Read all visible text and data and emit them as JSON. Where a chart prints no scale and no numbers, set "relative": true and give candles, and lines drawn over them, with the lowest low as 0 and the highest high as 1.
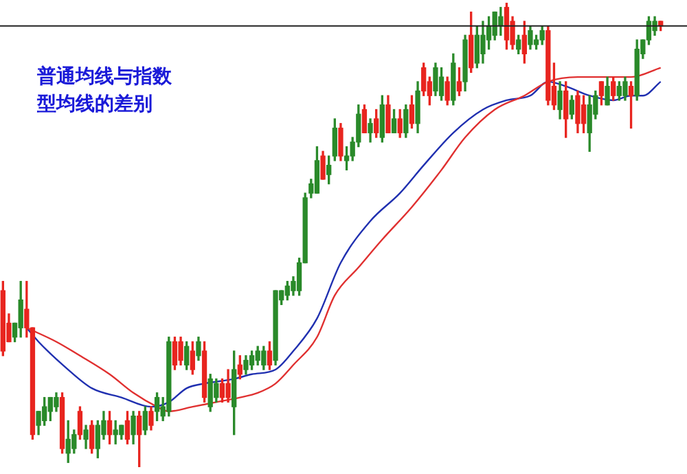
{
  "chart_data": {
    "type": "candlestick",
    "relative": true,
    "title": "普通均线与指数型均线的差别",
    "categories": [
      null,
      null,
      null,
      null,
      null,
      null,
      null,
      null,
      null,
      null,
      null,
      null,
      null,
      null,
      null,
      null,
      null,
      null,
      null,
      null,
      null,
      null,
      null,
      null,
      null,
      null,
      null,
      null,
      null,
      null,
      null,
      null,
      null,
      null,
      null,
      null,
      null,
      null,
      null,
      null,
      null,
      null,
      null,
      null,
      null,
      null,
      null,
      null,
      null,
      null,
      null,
      null,
      null,
      null,
      null,
      null,
      null,
      null,
      null,
      null,
      null,
      null,
      null,
      null,
      null,
      null,
      null,
      null,
      null,
      null,
      null,
      null,
      null,
      null,
      null,
      null,
      null,
      null,
      null,
      null,
      null,
      null,
      null,
      null,
      null,
      null,
      null,
      null,
      null,
      null,
      null,
      null,
      null,
      null,
      null,
      null,
      null,
      null,
      null,
      null,
      null,
      null,
      null,
      null,
      null,
      null,
      null,
      null,
      null,
      null,
      null,
      null
    ],
    "ohlc": [
      [
        0.38,
        0.4,
        0.24,
        0.25
      ],
      [
        0.31,
        0.33,
        0.27,
        0.27
      ],
      [
        0.28,
        0.31,
        0.27,
        0.31
      ],
      [
        0.3,
        0.4,
        0.28,
        0.36
      ],
      [
        0.34,
        0.4,
        0.28,
        0.3
      ],
      [
        0.3,
        0.3,
        0.06,
        0.07
      ],
      [
        0.09,
        0.12,
        0.07,
        0.12
      ],
      [
        0.1,
        0.15,
        0.09,
        0.13
      ],
      [
        0.12,
        0.15,
        0.1,
        0.15
      ],
      [
        0.13,
        0.16,
        0.12,
        0.15
      ],
      [
        0.15,
        0.16,
        0.03,
        0.04
      ],
      [
        0.03,
        0.1,
        0.01,
        0.06
      ],
      [
        0.04,
        0.08,
        0.03,
        0.07
      ],
      [
        0.12,
        0.13,
        0.06,
        0.07
      ],
      [
        0.06,
        0.09,
        0.04,
        0.08
      ],
      [
        0.09,
        0.1,
        0.03,
        0.04
      ],
      [
        0.04,
        0.1,
        0.02,
        0.09
      ],
      [
        0.07,
        0.12,
        0.06,
        0.1
      ],
      [
        0.1,
        0.12,
        0.05,
        0.07
      ],
      [
        0.07,
        0.1,
        0.05,
        0.08
      ],
      [
        0.07,
        0.09,
        0.06,
        0.09
      ],
      [
        0.1,
        0.12,
        0.05,
        0.06
      ],
      [
        0.07,
        0.12,
        0.05,
        0.11
      ],
      [
        0.11,
        0.12,
        0,
        0.07
      ],
      [
        0.08,
        0.13,
        0.07,
        0.12
      ],
      [
        0.12,
        0.13,
        0.08,
        0.09
      ],
      [
        0.12,
        0.16,
        0.1,
        0.15
      ],
      [
        0.11,
        0.15,
        0.1,
        0.13
      ],
      [
        0.12,
        0.28,
        0.11,
        0.27
      ],
      [
        0.27,
        0.28,
        0.21,
        0.22
      ],
      [
        0.27,
        0.28,
        0.22,
        0.23
      ],
      [
        0.22,
        0.27,
        0.21,
        0.26
      ],
      [
        0.25,
        0.27,
        0.2,
        0.21
      ],
      [
        0.24,
        0.28,
        0.23,
        0.27
      ],
      [
        0.25,
        0.27,
        0.14,
        0.15
      ],
      [
        0.13,
        0.2,
        0.12,
        0.19
      ],
      [
        0.15,
        0.19,
        0.14,
        0.18
      ],
      [
        0.18,
        0.19,
        0.14,
        0.15
      ],
      [
        0.18,
        0.21,
        0.14,
        0.15
      ],
      [
        0.13,
        0.25,
        0.07,
        0.21
      ],
      [
        0.22,
        0.24,
        0.19,
        0.2
      ],
      [
        0.21,
        0.24,
        0.2,
        0.23
      ],
      [
        0.22,
        0.25,
        0.21,
        0.24
      ],
      [
        0.23,
        0.26,
        0.22,
        0.25
      ],
      [
        0.22,
        0.26,
        0.21,
        0.25
      ],
      [
        0.25,
        0.27,
        0.21,
        0.22
      ],
      [
        0.23,
        0.38,
        0.22,
        0.38
      ],
      [
        0.36,
        0.38,
        0.35,
        0.38
      ],
      [
        0.37,
        0.4,
        0.36,
        0.39
      ],
      [
        0.38,
        0.41,
        0.37,
        0.4
      ],
      [
        0.38,
        0.45,
        0.37,
        0.44
      ],
      [
        0.44,
        0.59,
        0.44,
        0.58
      ],
      [
        0.59,
        0.62,
        0.58,
        0.61
      ],
      [
        0.59,
        0.69,
        0.59,
        0.66
      ],
      [
        0.67,
        0.68,
        0.62,
        0.62
      ],
      [
        0.63,
        0.67,
        0.61,
        0.65
      ],
      [
        0.67,
        0.75,
        0.66,
        0.73
      ],
      [
        0.73,
        0.74,
        0.66,
        0.67
      ],
      [
        0.66,
        0.69,
        0.64,
        0.67
      ],
      [
        0.67,
        0.71,
        0.66,
        0.7
      ],
      [
        0.7,
        0.78,
        0.69,
        0.76
      ],
      [
        0.77,
        0.78,
        0.72,
        0.72
      ],
      [
        0.72,
        0.75,
        0.7,
        0.74
      ],
      [
        0.75,
        0.77,
        0.71,
        0.72
      ],
      [
        0.71,
        0.8,
        0.7,
        0.78
      ],
      [
        0.78,
        0.8,
        0.72,
        0.72
      ],
      [
        0.72,
        0.77,
        0.72,
        0.75
      ],
      [
        0.75,
        0.77,
        0.71,
        0.72
      ],
      [
        0.72,
        0.78,
        0.71,
        0.77
      ],
      [
        0.78,
        0.8,
        0.73,
        0.74
      ],
      [
        0.74,
        0.83,
        0.72,
        0.81
      ],
      [
        0.86,
        0.87,
        0.8,
        0.81
      ],
      [
        0.83,
        0.84,
        0.78,
        0.8
      ],
      [
        0.81,
        0.87,
        0.8,
        0.86
      ],
      [
        0.8,
        0.86,
        0.79,
        0.84
      ],
      [
        0.83,
        0.84,
        0.78,
        0.79
      ],
      [
        0.79,
        0.89,
        0.78,
        0.87
      ],
      [
        0.83,
        0.86,
        0.8,
        0.81
      ],
      [
        0.83,
        0.93,
        0.81,
        0.92
      ],
      [
        0.93,
        0.98,
        0.85,
        0.86
      ],
      [
        0.87,
        0.95,
        0.86,
        0.93
      ],
      [
        0.89,
        0.96,
        0.87,
        0.93
      ],
      [
        0.92,
        0.97,
        0.9,
        0.95
      ],
      [
        0.93,
        0.98,
        0.92,
        0.98
      ],
      [
        0.95,
        0.99,
        0.93,
        0.97
      ],
      [
        0.99,
        1,
        0.9,
        0.92
      ],
      [
        0.96,
        0.97,
        0.9,
        0.91
      ],
      [
        0.9,
        0.93,
        0.89,
        0.92
      ],
      [
        0.93,
        0.96,
        0.87,
        0.89
      ],
      [
        0.91,
        0.95,
        0.9,
        0.94
      ],
      [
        0.91,
        0.93,
        0.9,
        0.92
      ],
      [
        0.92,
        0.95,
        0.91,
        0.94
      ],
      [
        0.94,
        0.95,
        0.78,
        0.79
      ],
      [
        0.82,
        0.87,
        0.77,
        0.78
      ],
      [
        0.77,
        0.83,
        0.75,
        0.81
      ],
      [
        0.81,
        0.83,
        0.71,
        0.75
      ],
      [
        0.76,
        0.8,
        0.75,
        0.79
      ],
      [
        0.8,
        0.81,
        0.72,
        0.74
      ],
      [
        0.78,
        0.8,
        0.72,
        0.74
      ],
      [
        0.72,
        0.8,
        0.68,
        0.78
      ],
      [
        0.76,
        0.81,
        0.75,
        0.8
      ],
      [
        0.83,
        0.83,
        0.78,
        0.8
      ],
      [
        0.78,
        0.84,
        0.78,
        0.82
      ],
      [
        0.83,
        0.84,
        0.79,
        0.8
      ],
      [
        0.8,
        0.83,
        0.79,
        0.82
      ],
      [
        0.8,
        0.84,
        0.79,
        0.83
      ],
      [
        0.82,
        0.83,
        0.73,
        0.8
      ],
      [
        0.8,
        0.92,
        0.79,
        0.9
      ],
      [
        0.89,
        0.92,
        0.88,
        0.92
      ],
      [
        0.92,
        0.97,
        0.91,
        0.96
      ],
      [
        0.94,
        0.97,
        0.93,
        0.96
      ],
      [
        0.96,
        0.96,
        0.94,
        0.95
      ]
    ],
    "colors": [
      "#e8251f",
      "#e8251f",
      "#2a8a2a",
      "#2a8a2a",
      "#e8251f",
      "#e8251f",
      "#2a8a2a",
      "#2a8a2a",
      "#2a8a2a",
      "#2a8a2a",
      "#e8251f",
      "#2a8a2a",
      "#2a8a2a",
      "#e8251f",
      "#2a8a2a",
      "#e8251f",
      "#2a8a2a",
      "#2a8a2a",
      "#e8251f",
      "#2a8a2a",
      "#2a8a2a",
      "#e8251f",
      "#2a8a2a",
      "#e8251f",
      "#2a8a2a",
      "#e8251f",
      "#2a8a2a",
      "#2a8a2a",
      "#2a8a2a",
      "#e8251f",
      "#e8251f",
      "#2a8a2a",
      "#e8251f",
      "#2a8a2a",
      "#e8251f",
      "#2a8a2a",
      "#2a8a2a",
      "#e8251f",
      "#e8251f",
      "#2a8a2a",
      "#e8251f",
      "#2a8a2a",
      "#2a8a2a",
      "#2a8a2a",
      "#2a8a2a",
      "#e8251f",
      "#2a8a2a",
      "#2a8a2a",
      "#2a8a2a",
      "#2a8a2a",
      "#2a8a2a",
      "#2a8a2a",
      "#2a8a2a",
      "#2a8a2a",
      "#e8251f",
      "#2a8a2a",
      "#2a8a2a",
      "#e8251f",
      "#2a8a2a",
      "#2a8a2a",
      "#2a8a2a",
      "#e8251f",
      "#2a8a2a",
      "#e8251f",
      "#2a8a2a",
      "#e8251f",
      "#2a8a2a",
      "#e8251f",
      "#2a8a2a",
      "#e8251f",
      "#2a8a2a",
      "#e8251f",
      "#e8251f",
      "#2a8a2a",
      "#2a8a2a",
      "#e8251f",
      "#2a8a2a",
      "#e8251f",
      "#2a8a2a",
      "#e8251f",
      "#2a8a2a",
      "#2a8a2a",
      "#2a8a2a",
      "#2a8a2a",
      "#2a8a2a",
      "#e8251f",
      "#e8251f",
      "#2a8a2a",
      "#e8251f",
      "#2a8a2a",
      "#2a8a2a",
      "#2a8a2a",
      "#e8251f",
      "#e8251f",
      "#2a8a2a",
      "#e8251f",
      "#2a8a2a",
      "#e8251f",
      "#e8251f",
      "#2a8a2a",
      "#2a8a2a",
      "#e8251f",
      "#2a8a2a",
      "#e8251f",
      "#2a8a2a",
      "#2a8a2a",
      "#e8251f",
      "#2a8a2a",
      "#2a8a2a",
      "#2a8a2a",
      "#2a8a2a",
      "#e8251f"
    ],
    "series": [
      {
        "type": "line",
        "color": "#e03030",
        "values": [
          null,
          null,
          null,
          null,
          0.3,
          null,
          null,
          null,
          null,
          0.27,
          null,
          null,
          null,
          0.24,
          null,
          null,
          null,
          null,
          0.2,
          null,
          null,
          null,
          0.16,
          null,
          null,
          null,
          0.13,
          null,
          0.12,
          null,
          null,
          null,
          0.13,
          null,
          null,
          null,
          0.14,
          null,
          null,
          null,
          0.15,
          null,
          null,
          0.16,
          null,
          null,
          0.18,
          null,
          null,
          0.22,
          null,
          null,
          null,
          0.28,
          null,
          null,
          0.37,
          null,
          null,
          null,
          0.43,
          null,
          null,
          null,
          0.49,
          null,
          null,
          null,
          null,
          0.56,
          null,
          null,
          null,
          null,
          0.64,
          null,
          null,
          null,
          0.71,
          null,
          null,
          null,
          null,
          0.77,
          null,
          null,
          null,
          null,
          0.8,
          null,
          null,
          null,
          0.83,
          null,
          null,
          null,
          null,
          0.84,
          null,
          null,
          null,
          0.84,
          null,
          null,
          null,
          null,
          0.84,
          null,
          null,
          null,
          null,
          0.86
        ]
      },
      {
        "type": "line",
        "color": "#2030b0",
        "values": [
          null,
          null,
          null,
          null,
          0.3,
          null,
          0.27,
          null,
          null,
          null,
          null,
          0.21,
          null,
          null,
          null,
          0.17,
          null,
          null,
          null,
          null,
          0.15,
          null,
          null,
          null,
          null,
          0.13,
          null,
          null,
          0.14,
          null,
          null,
          0.17,
          null,
          null,
          0.18,
          null,
          null,
          null,
          null,
          0.19,
          null,
          null,
          0.2,
          null,
          null,
          null,
          0.21,
          null,
          null,
          0.25,
          null,
          null,
          null,
          0.32,
          null,
          null,
          null,
          0.44,
          null,
          null,
          null,
          null,
          0.53,
          null,
          null,
          null,
          null,
          0.59,
          null,
          null,
          null,
          0.65,
          null,
          null,
          null,
          null,
          0.72,
          null,
          null,
          null,
          null,
          0.77,
          null,
          null,
          null,
          0.79,
          null,
          null,
          null,
          0.8,
          null,
          null,
          0.83,
          null,
          null,
          0.82,
          null,
          null,
          null,
          0.8,
          null,
          null,
          null,
          0.79,
          null,
          null,
          0.8,
          null,
          0.8,
          null,
          null,
          0.83
        ]
      }
    ],
    "ref_lines": [
      {
        "axis": "y",
        "value": 0.95,
        "color": "#222222"
      }
    ]
  }
}
